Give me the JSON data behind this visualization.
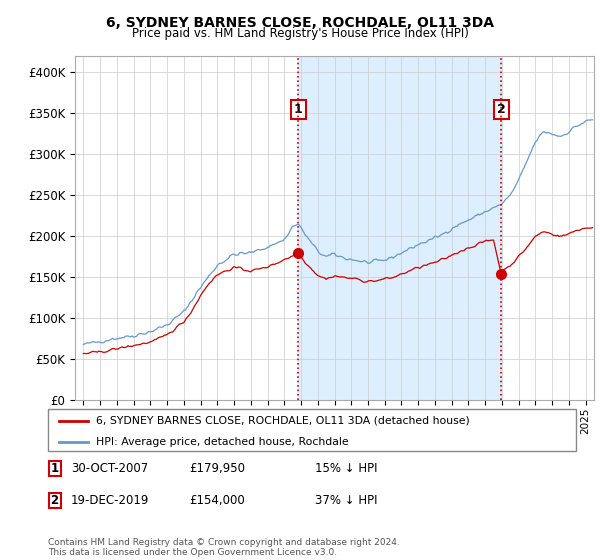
{
  "title": "6, SYDNEY BARNES CLOSE, ROCHDALE, OL11 3DA",
  "subtitle": "Price paid vs. HM Land Registry's House Price Index (HPI)",
  "legend_label_red": "6, SYDNEY BARNES CLOSE, ROCHDALE, OL11 3DA (detached house)",
  "legend_label_blue": "HPI: Average price, detached house, Rochdale",
  "footer": "Contains HM Land Registry data © Crown copyright and database right 2024.\nThis data is licensed under the Open Government Licence v3.0.",
  "annotation1": {
    "num": "1",
    "date": "30-OCT-2007",
    "price": "£179,950",
    "pct": "15% ↓ HPI"
  },
  "annotation2": {
    "num": "2",
    "date": "19-DEC-2019",
    "price": "£154,000",
    "pct": "37% ↓ HPI"
  },
  "sale1_date_num": 2007.83,
  "sale1_price": 179950,
  "sale2_date_num": 2019.96,
  "sale2_price": 154000,
  "red_color": "#cc0000",
  "blue_color": "#6699cc",
  "shade_color": "#ddeeff",
  "dashed_line_color": "#cc0000",
  "ylim": [
    0,
    420000
  ],
  "yticks": [
    0,
    50000,
    100000,
    150000,
    200000,
    250000,
    300000,
    350000,
    400000
  ],
  "xlim_start": 1994.5,
  "xlim_end": 2025.5
}
